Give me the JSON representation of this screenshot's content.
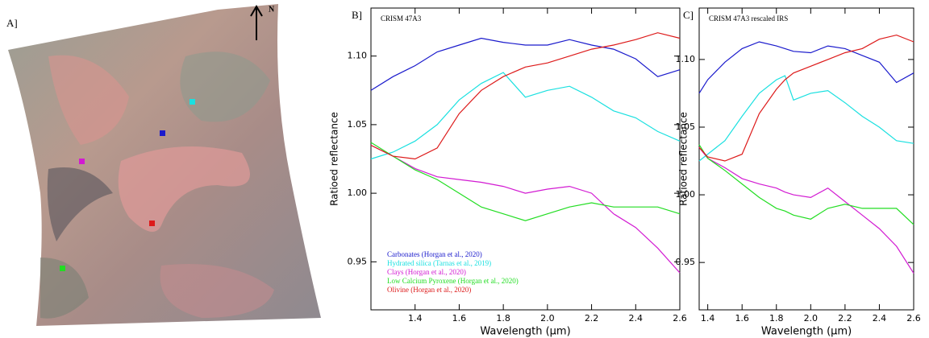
{
  "panel_a": {
    "label": "A]",
    "north": "N"
  },
  "chart_data": [
    {
      "type": "line",
      "panel": "B]",
      "title": "CRISM 47A3",
      "x_label": "Wavelength (µm)",
      "y_label": "Ratioed reflectance",
      "x": [
        1.2,
        1.3,
        1.4,
        1.5,
        1.6,
        1.7,
        1.8,
        1.9,
        2.0,
        2.1,
        2.2,
        2.3,
        2.4,
        2.5,
        2.6
      ],
      "xlim": [
        1.2,
        2.6
      ],
      "ylim": [
        0.915,
        1.135
      ],
      "xticks": [
        1.4,
        1.6,
        1.8,
        {
          "value": 2,
          "label": "2.0"
        },
        2.2,
        2.4,
        2.6
      ],
      "yticks": [
        0.95,
        {
          "value": 1,
          "label": "1.00"
        },
        1.05,
        {
          "value": 1.1,
          "label": "1.10"
        }
      ],
      "legend": "lower left",
      "series": [
        {
          "name": "Carbonates (Horgan et al., 2020)",
          "color": "#1a1acc",
          "values": [
            1.075,
            1.085,
            1.093,
            1.103,
            1.108,
            1.113,
            1.11,
            1.108,
            1.108,
            1.112,
            1.108,
            1.105,
            1.098,
            1.085,
            1.09
          ]
        },
        {
          "name": "Hydrated silica (Tarnas et al., 2019)",
          "color": "#1ae0e0",
          "values": [
            1.025,
            1.03,
            1.038,
            1.05,
            1.068,
            1.08,
            1.088,
            1.07,
            1.075,
            1.078,
            1.07,
            1.06,
            1.055,
            1.045,
            1.038
          ]
        },
        {
          "name": "Clays (Horgan et al., 2020)",
          "color": "#d21ad2",
          "values": [
            1.035,
            1.027,
            1.018,
            1.012,
            1.01,
            1.008,
            1.005,
            1.0,
            1.003,
            1.005,
            1.0,
            0.985,
            0.975,
            0.96,
            0.942
          ]
        },
        {
          "name": "Low Calcium Pyroxene (Horgan et al., 2020)",
          "color": "#22dd22",
          "values": [
            1.037,
            1.027,
            1.017,
            1.01,
            1.0,
            0.99,
            0.985,
            0.98,
            0.985,
            0.99,
            0.993,
            0.99,
            0.99,
            0.99,
            0.985
          ]
        },
        {
          "name": "Olivine (Horgan et al., 2020)",
          "color": "#dd1a1a",
          "values": [
            1.035,
            1.027,
            1.025,
            1.033,
            1.058,
            1.075,
            1.085,
            1.092,
            1.095,
            1.1,
            1.105,
            1.108,
            1.112,
            1.117,
            1.113
          ]
        }
      ]
    },
    {
      "type": "line",
      "panel": "C]",
      "title": "CRISM 47A3 rescaled IRS",
      "x_label": "Wavelength (µm)",
      "y_label": "Ratioed reflectance",
      "x": [
        1.35,
        1.4,
        1.5,
        1.6,
        1.7,
        1.8,
        1.85,
        1.9,
        2.0,
        2.1,
        2.2,
        2.3,
        2.4,
        2.5,
        2.6
      ],
      "xlim": [
        1.35,
        2.6
      ],
      "ylim": [
        0.915,
        1.138
      ],
      "xticks": [
        1.4,
        1.6,
        1.8,
        {
          "value": 2,
          "label": "2.0"
        },
        2.2,
        2.4,
        2.6
      ],
      "yticks": [
        0.95,
        {
          "value": 1,
          "label": "1.00"
        },
        1.05,
        {
          "value": 1.1,
          "label": "1.10"
        }
      ],
      "series": [
        {
          "color": "#1a1acc",
          "values": [
            1.075,
            1.085,
            1.098,
            1.108,
            1.113,
            1.11,
            1.108,
            1.106,
            1.105,
            1.11,
            1.108,
            1.103,
            1.098,
            1.083,
            1.09
          ]
        },
        {
          "color": "#1ae0e0",
          "values": [
            1.025,
            1.03,
            1.04,
            1.058,
            1.075,
            1.085,
            1.088,
            1.07,
            1.075,
            1.077,
            1.068,
            1.058,
            1.05,
            1.04,
            1.038
          ]
        },
        {
          "color": "#d21ad2",
          "values": [
            1.035,
            1.027,
            1.02,
            1.012,
            1.008,
            1.005,
            1.002,
            1.0,
            0.998,
            1.005,
            0.995,
            0.985,
            0.975,
            0.962,
            0.942
          ]
        },
        {
          "color": "#22dd22",
          "values": [
            1.037,
            1.027,
            1.018,
            1.008,
            0.998,
            0.99,
            0.988,
            0.985,
            0.982,
            0.99,
            0.993,
            0.99,
            0.99,
            0.99,
            0.978
          ]
        },
        {
          "color": "#dd1a1a",
          "values": [
            1.035,
            1.028,
            1.025,
            1.03,
            1.06,
            1.078,
            1.085,
            1.09,
            1.095,
            1.1,
            1.105,
            1.108,
            1.115,
            1.118,
            1.113
          ]
        }
      ]
    }
  ]
}
